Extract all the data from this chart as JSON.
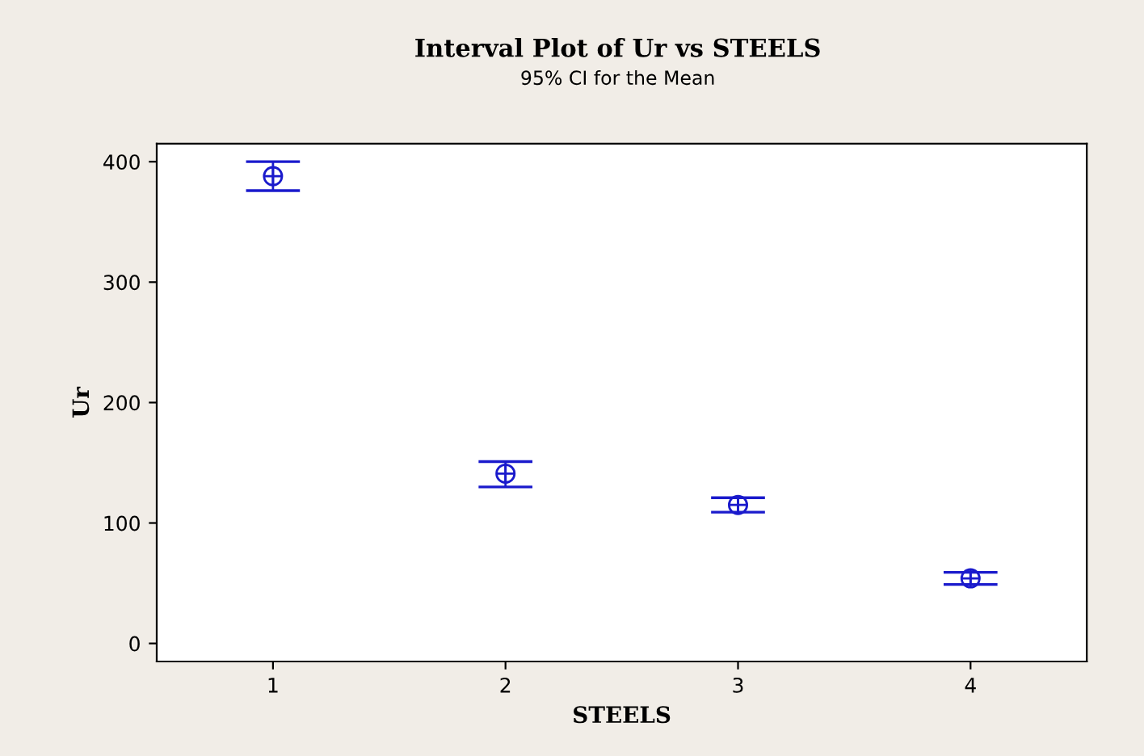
{
  "chart_data": {
    "type": "scatter",
    "title": "Interval Plot of Ur vs STEELS",
    "subtitle": "95% CI for the Mean",
    "xlabel": "STEELS",
    "ylabel": "Ur",
    "x": [
      1,
      2,
      3,
      4
    ],
    "series": [
      {
        "color": "#1a1acc",
        "values": [
          388,
          141,
          115,
          54
        ],
        "errors": [
          [
            376,
            400
          ],
          [
            130,
            151
          ],
          [
            109,
            121
          ],
          [
            49,
            59
          ]
        ]
      }
    ],
    "xlim": [
      0.5,
      4.5
    ],
    "xticks": [
      1,
      2,
      3,
      4
    ],
    "ylim": [
      -15,
      415
    ],
    "yticks": [
      0,
      100,
      200,
      300,
      400
    ],
    "marker": "circle",
    "grid": false
  }
}
